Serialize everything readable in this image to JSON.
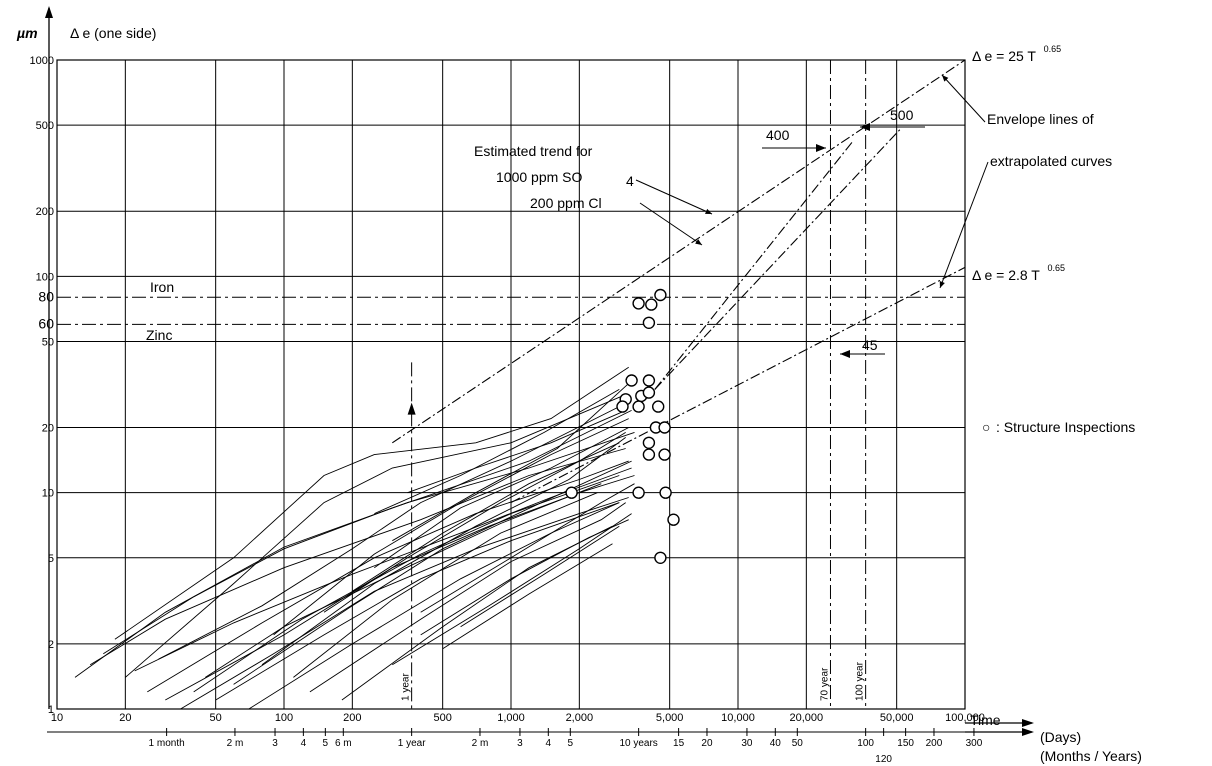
{
  "chart_data": {
    "type": "line",
    "x_scale": "log",
    "y_scale": "log",
    "xlim": [
      10,
      100000
    ],
    "ylim": [
      1,
      1000
    ],
    "grid": true,
    "y_unit": "µm",
    "ylabel": "Δ e (one side)",
    "xlabel": "Time",
    "x_units": [
      "(Days)",
      "(Months / Years)"
    ],
    "y_ticks": [
      1,
      2,
      5,
      10,
      20,
      50,
      60,
      80,
      100,
      200,
      500,
      1000
    ],
    "y_tick_labels": [
      "1",
      "2",
      "5",
      "10",
      "20",
      "50",
      "60",
      "80",
      "100",
      "200",
      "500",
      "1000"
    ],
    "x_ticks_days": [
      {
        "v": 10,
        "t": "10"
      },
      {
        "v": 20,
        "t": "20"
      },
      {
        "v": 50,
        "t": "50"
      },
      {
        "v": 100,
        "t": "100"
      },
      {
        "v": 200,
        "t": "200"
      },
      {
        "v": 500,
        "t": "500"
      },
      {
        "v": 1000,
        "t": "1,000"
      },
      {
        "v": 2000,
        "t": "2,000"
      },
      {
        "v": 5000,
        "t": "5,000"
      },
      {
        "v": 10000,
        "t": "10,000"
      },
      {
        "v": 20000,
        "t": "20,000"
      },
      {
        "v": 50000,
        "t": "50,000"
      },
      {
        "v": 100000,
        "t": "100,000"
      }
    ],
    "x_ticks_months_years": [
      {
        "v": 30.4,
        "t": "1 month"
      },
      {
        "v": 60.8,
        "t": "2 m"
      },
      {
        "v": 91.3,
        "t": "3"
      },
      {
        "v": 121.7,
        "t": "4"
      },
      {
        "v": 152.1,
        "t": "5"
      },
      {
        "v": 182.5,
        "t": "6 m"
      },
      {
        "v": 365,
        "t": "1 year"
      },
      {
        "v": 730,
        "t": "2 m"
      },
      {
        "v": 1095,
        "t": "3"
      },
      {
        "v": 1460,
        "t": "4"
      },
      {
        "v": 1825,
        "t": "5"
      },
      {
        "v": 3650,
        "t": "10 years"
      },
      {
        "v": 5475,
        "t": "15"
      },
      {
        "v": 7300,
        "t": "20"
      },
      {
        "v": 10950,
        "t": "30"
      },
      {
        "v": 14600,
        "t": "40"
      },
      {
        "v": 18250,
        "t": "50"
      },
      {
        "v": 36500,
        "t": "100"
      },
      {
        "v": 43800,
        "t": "120"
      },
      {
        "v": 54750,
        "t": "150"
      },
      {
        "v": 73000,
        "t": "200"
      },
      {
        "v": 109500,
        "t": "300"
      }
    ],
    "reference_lines": [
      {
        "label": "Iron",
        "y": 80
      },
      {
        "label": "Zinc",
        "y": 60
      }
    ],
    "vertical_lines": [
      {
        "label": "1 year",
        "x": 365
      },
      {
        "label": "70 year",
        "x": 25550
      },
      {
        "label": "100 year",
        "x": 36500
      }
    ],
    "envelope_lines": [
      {
        "label": "Δ e = 25 T",
        "exponent": "0.65",
        "x": [
          300,
          100000
        ],
        "y": [
          17,
          1000
        ]
      },
      {
        "label": "Δ e = 2.8 T",
        "exponent": "0.65",
        "x": [
          1000,
          100000
        ],
        "y": [
          9,
          110
        ]
      }
    ],
    "trend_lines": [
      {
        "x": [
          4300,
          52000
        ],
        "y": [
          30,
          480
        ]
      },
      {
        "x": [
          4300,
          32000
        ],
        "y": [
          30,
          420
        ]
      }
    ],
    "annotations": {
      "estimated_trend": [
        "Estimated trend for",
        "1000 ppm SO",
        "4",
        "200 ppm Cl"
      ],
      "envelope_text": [
        "Envelope lines of",
        "extrapolated curves"
      ],
      "marker_values": [
        "400",
        "500",
        "45"
      ],
      "legend_marker": "○",
      "legend_text": ": Structure Inspections"
    },
    "inspections": [
      [
        3650,
        75
      ],
      [
        4150,
        74
      ],
      [
        4550,
        82
      ],
      [
        4050,
        61
      ],
      [
        3400,
        33
      ],
      [
        4050,
        33
      ],
      [
        3750,
        28
      ],
      [
        4050,
        29
      ],
      [
        4450,
        25
      ],
      [
        3650,
        25
      ],
      [
        4350,
        20
      ],
      [
        4750,
        20
      ],
      [
        4050,
        17
      ],
      [
        4050,
        15
      ],
      [
        4750,
        15
      ],
      [
        1850,
        10
      ],
      [
        3650,
        10
      ],
      [
        4800,
        10
      ],
      [
        5200,
        7.5
      ],
      [
        4550,
        5
      ],
      [
        3200,
        27
      ],
      [
        3100,
        25
      ]
    ],
    "test_curves": [
      [
        [
          12,
          1.4
        ],
        [
          30,
          2.8
        ],
        [
          100,
          5.6
        ],
        [
          350,
          9
        ],
        [
          1200,
          13
        ],
        [
          3500,
          19
        ]
      ],
      [
        [
          14,
          1.6
        ],
        [
          30,
          2.6
        ],
        [
          100,
          4.5
        ],
        [
          400,
          7.5
        ],
        [
          1200,
          12
        ],
        [
          3200,
          16
        ]
      ],
      [
        [
          16,
          1.8
        ],
        [
          40,
          3.3
        ],
        [
          100,
          5.5
        ],
        [
          300,
          8.5
        ],
        [
          1200,
          14
        ],
        [
          3400,
          24
        ]
      ],
      [
        [
          18,
          2.1
        ],
        [
          60,
          5
        ],
        [
          150,
          12
        ],
        [
          250,
          15
        ],
        [
          700,
          17
        ],
        [
          1500,
          22
        ],
        [
          3300,
          38
        ]
      ],
      [
        [
          20,
          1.4
        ],
        [
          60,
          3.8
        ],
        [
          150,
          9
        ],
        [
          300,
          13
        ],
        [
          1000,
          17
        ],
        [
          3100,
          28
        ]
      ],
      [
        [
          25,
          1.2
        ],
        [
          80,
          2.5
        ],
        [
          250,
          5
        ],
        [
          700,
          8
        ],
        [
          2000,
          11.5
        ],
        [
          3300,
          14
        ]
      ],
      [
        [
          22,
          1.5
        ],
        [
          60,
          2.5
        ],
        [
          200,
          4.2
        ],
        [
          600,
          6.5
        ],
        [
          1500,
          9.5
        ],
        [
          3400,
          13
        ]
      ],
      [
        [
          30,
          1.1
        ],
        [
          100,
          2.2
        ],
        [
          300,
          4.5
        ],
        [
          800,
          7
        ],
        [
          2000,
          10
        ],
        [
          3500,
          12
        ]
      ],
      [
        [
          35,
          1.0
        ],
        [
          90,
          1.8
        ],
        [
          250,
          3.5
        ],
        [
          700,
          5.5
        ],
        [
          2000,
          8
        ],
        [
          3300,
          9.5
        ]
      ],
      [
        [
          40,
          1.2
        ],
        [
          120,
          2.6
        ],
        [
          400,
          5.2
        ],
        [
          1000,
          8
        ],
        [
          3000,
          12
        ]
      ],
      [
        [
          28,
          1.7
        ],
        [
          80,
          3
        ],
        [
          200,
          5.5
        ],
        [
          400,
          9
        ],
        [
          1000,
          14
        ],
        [
          3000,
          25
        ]
      ],
      [
        [
          45,
          1.4
        ],
        [
          100,
          2.4
        ],
        [
          300,
          4.2
        ],
        [
          900,
          7.2
        ],
        [
          2500,
          11
        ]
      ],
      [
        [
          50,
          1.1
        ],
        [
          150,
          2.2
        ],
        [
          400,
          4
        ],
        [
          1000,
          6
        ],
        [
          3000,
          9
        ]
      ],
      [
        [
          60,
          1.3
        ],
        [
          200,
          3
        ],
        [
          500,
          5.5
        ],
        [
          1300,
          8.8
        ],
        [
          3400,
          14
        ]
      ],
      [
        [
          70,
          1.0
        ],
        [
          200,
          2
        ],
        [
          600,
          4
        ],
        [
          1500,
          6.5
        ],
        [
          3000,
          9
        ]
      ],
      [
        [
          80,
          1.6
        ],
        [
          250,
          3.8
        ],
        [
          700,
          7
        ],
        [
          1800,
          11.5
        ],
        [
          3200,
          18
        ]
      ],
      [
        [
          90,
          2.2
        ],
        [
          250,
          5.2
        ],
        [
          600,
          9
        ],
        [
          1500,
          15
        ],
        [
          3300,
          22
        ]
      ],
      [
        [
          110,
          1.4
        ],
        [
          300,
          3.2
        ],
        [
          900,
          6.5
        ],
        [
          2400,
          10
        ]
      ],
      [
        [
          130,
          1.2
        ],
        [
          400,
          2.6
        ],
        [
          1000,
          4.8
        ],
        [
          2500,
          7.5
        ],
        [
          3200,
          9
        ]
      ],
      [
        [
          150,
          2.8
        ],
        [
          350,
          5
        ],
        [
          900,
          9
        ],
        [
          2000,
          14
        ],
        [
          3200,
          19
        ]
      ],
      [
        [
          180,
          1.1
        ],
        [
          500,
          2.4
        ],
        [
          1200,
          4.5
        ],
        [
          2800,
          7
        ]
      ],
      [
        [
          200,
          3.5
        ],
        [
          500,
          6.5
        ],
        [
          1200,
          11
        ],
        [
          3000,
          17
        ]
      ],
      [
        [
          250,
          4.5
        ],
        [
          600,
          8.5
        ],
        [
          1500,
          13
        ],
        [
          3300,
          20
        ]
      ],
      [
        [
          300,
          1.6
        ],
        [
          800,
          3
        ],
        [
          2000,
          5.5
        ],
        [
          3400,
          8
        ]
      ],
      [
        [
          350,
          10
        ],
        [
          700,
          13
        ],
        [
          1500,
          17
        ],
        [
          3200,
          24
        ]
      ],
      [
        [
          400,
          2.2
        ],
        [
          1000,
          4
        ],
        [
          2200,
          6.2
        ],
        [
          3300,
          7.5
        ]
      ],
      [
        [
          500,
          1.9
        ],
        [
          1200,
          3.4
        ],
        [
          2800,
          5.8
        ]
      ],
      [
        [
          300,
          6
        ],
        [
          700,
          10
        ],
        [
          1600,
          16
        ],
        [
          3300,
          32
        ]
      ],
      [
        [
          250,
          8
        ],
        [
          600,
          12
        ],
        [
          1400,
          19
        ],
        [
          3000,
          30
        ]
      ],
      [
        [
          400,
          2.8
        ],
        [
          1000,
          5
        ],
        [
          2500,
          9
        ],
        [
          3500,
          11
        ]
      ],
      [
        [
          600,
          2.4
        ],
        [
          1400,
          4.2
        ],
        [
          3000,
          7
        ]
      ]
    ]
  }
}
